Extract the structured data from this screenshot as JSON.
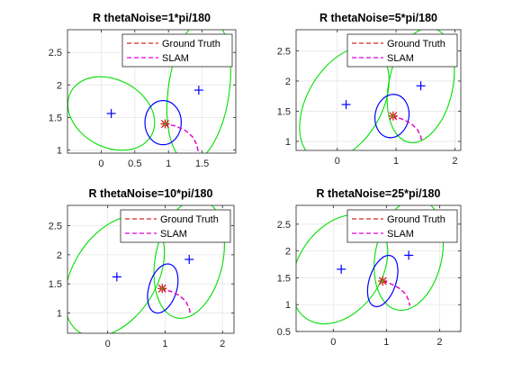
{
  "figure": {
    "background": "#ffffff",
    "colors": {
      "ground_truth": "#d62728",
      "slam": "#e000e0",
      "landmark_ellipse": "#00e000",
      "robot_ellipse": "#0000ff",
      "landmark_marker": "#00008b",
      "estimate_marker": "#d40000"
    }
  },
  "chart_data": [
    {
      "type": "line",
      "title": "R thetaNoise=1*pi/180",
      "xlim": [
        -0.5,
        2.0
      ],
      "ylim": [
        0.95,
        2.85
      ],
      "xticks": [
        0,
        0.5,
        1,
        1.5
      ],
      "xtick_labels": [
        "0",
        "0.5",
        "1",
        "1.5"
      ],
      "yticks": [
        1,
        1.5,
        2,
        2.5
      ],
      "ytick_labels": [
        "1",
        "1.5",
        "2",
        "2.5"
      ],
      "legend": {
        "placement": "top-right",
        "entries": [
          "Ground Truth",
          "SLAM"
        ]
      },
      "series": [
        {
          "name": "Ground Truth",
          "style": "dashed",
          "x": [
            0.93,
            1.1,
            1.25,
            1.36,
            1.42,
            1.44
          ],
          "y": [
            1.4,
            1.37,
            1.3,
            1.2,
            1.08,
            0.98
          ]
        },
        {
          "name": "SLAM",
          "style": "dashed",
          "x": [
            0.93,
            1.1,
            1.25,
            1.36,
            1.42,
            1.44
          ],
          "y": [
            1.4,
            1.37,
            1.3,
            1.2,
            1.08,
            0.98
          ]
        }
      ],
      "landmarks": [
        {
          "x": 0.15,
          "y": 1.56
        },
        {
          "x": 1.45,
          "y": 1.92
        }
      ],
      "estimate": {
        "x": 0.95,
        "y": 1.4
      },
      "landmark_ellipses": [
        {
          "cx": 0.15,
          "cy": 1.56,
          "rx": 0.68,
          "ry": 0.52,
          "rot_deg": -28
        },
        {
          "cx": 1.45,
          "cy": 1.92,
          "rx": 1.08,
          "ry": 0.47,
          "rot_deg": 82
        }
      ],
      "robot_ellipse": {
        "cx": 0.92,
        "cy": 1.42,
        "rx": 0.27,
        "ry": 0.34,
        "rot_deg": 0
      }
    },
    {
      "type": "line",
      "title": "R thetaNoise=5*pi/180",
      "xlim": [
        -0.7,
        2.1
      ],
      "ylim": [
        0.85,
        2.85
      ],
      "xticks": [
        0,
        1,
        2
      ],
      "xtick_labels": [
        "0",
        "1",
        "2"
      ],
      "yticks": [
        1,
        1.5,
        2,
        2.5
      ],
      "ytick_labels": [
        "1",
        "1.5",
        "2",
        "2.5"
      ],
      "legend": {
        "placement": "top-right",
        "entries": [
          "Ground Truth",
          "SLAM"
        ]
      },
      "series": [
        {
          "name": "Ground Truth",
          "style": "dashed",
          "x": [
            0.93,
            1.1,
            1.25,
            1.36,
            1.42,
            1.44
          ],
          "y": [
            1.42,
            1.37,
            1.3,
            1.2,
            1.08,
            0.98
          ]
        },
        {
          "name": "SLAM",
          "style": "dashed",
          "x": [
            0.93,
            1.1,
            1.25,
            1.36,
            1.42,
            1.44
          ],
          "y": [
            1.42,
            1.37,
            1.3,
            1.2,
            1.08,
            0.98
          ]
        }
      ],
      "landmarks": [
        {
          "x": 0.15,
          "y": 1.61
        },
        {
          "x": 1.42,
          "y": 1.92
        }
      ],
      "estimate": {
        "x": 0.95,
        "y": 1.42
      },
      "landmark_ellipses": [
        {
          "cx": 0.12,
          "cy": 1.62,
          "rx": 1.05,
          "ry": 0.62,
          "rot_deg": 60
        },
        {
          "cx": 1.42,
          "cy": 1.93,
          "rx": 0.99,
          "ry": 0.53,
          "rot_deg": 78
        }
      ],
      "robot_ellipse": {
        "cx": 0.93,
        "cy": 1.42,
        "rx": 0.37,
        "ry": 0.28,
        "rot_deg": 80
      }
    },
    {
      "type": "line",
      "title": "R thetaNoise=10*pi/180",
      "xlim": [
        -0.7,
        2.2
      ],
      "ylim": [
        0.65,
        2.85
      ],
      "xticks": [
        0,
        1,
        2
      ],
      "xtick_labels": [
        "0",
        "1",
        "2"
      ],
      "yticks": [
        1,
        1.5,
        2,
        2.5
      ],
      "ytick_labels": [
        "1",
        "1.5",
        "2",
        "2.5"
      ],
      "legend": {
        "placement": "top-right",
        "entries": [
          "Ground Truth",
          "SLAM"
        ]
      },
      "series": [
        {
          "name": "Ground Truth",
          "style": "dashed",
          "x": [
            0.93,
            1.1,
            1.25,
            1.36,
            1.42,
            1.44
          ],
          "y": [
            1.42,
            1.37,
            1.3,
            1.2,
            1.08,
            0.98
          ]
        },
        {
          "name": "SLAM",
          "style": "dashed",
          "x": [
            0.93,
            1.1,
            1.25,
            1.36,
            1.42,
            1.44
          ],
          "y": [
            1.42,
            1.37,
            1.3,
            1.2,
            1.08,
            0.98
          ]
        }
      ],
      "landmarks": [
        {
          "x": 0.16,
          "y": 1.62
        },
        {
          "x": 1.42,
          "y": 1.92
        }
      ],
      "estimate": {
        "x": 0.95,
        "y": 1.42
      },
      "landmark_ellipses": [
        {
          "cx": 0.12,
          "cy": 1.63,
          "rx": 1.15,
          "ry": 0.72,
          "rot_deg": 58
        },
        {
          "cx": 1.42,
          "cy": 1.93,
          "rx": 1.05,
          "ry": 0.58,
          "rot_deg": 78
        }
      ],
      "robot_ellipse": {
        "cx": 0.96,
        "cy": 1.42,
        "rx": 0.44,
        "ry": 0.24,
        "rot_deg": 73
      }
    },
    {
      "type": "line",
      "title": "R thetaNoise=25*pi/180",
      "xlim": [
        -0.7,
        2.4
      ],
      "ylim": [
        0.5,
        2.85
      ],
      "xticks": [
        0,
        1,
        2
      ],
      "xtick_labels": [
        "0",
        "1",
        "2"
      ],
      "yticks": [
        0.5,
        1,
        1.5,
        2,
        2.5
      ],
      "ytick_labels": [
        "0.5",
        "1",
        "1.5",
        "2",
        "2.5"
      ],
      "legend": {
        "placement": "top-right",
        "entries": [
          "Ground Truth",
          "SLAM"
        ]
      },
      "series": [
        {
          "name": "Ground Truth",
          "style": "dashed",
          "x": [
            0.93,
            1.1,
            1.25,
            1.36,
            1.42,
            1.44
          ],
          "y": [
            1.44,
            1.38,
            1.3,
            1.2,
            1.08,
            0.98
          ]
        },
        {
          "name": "SLAM",
          "style": "dashed",
          "x": [
            0.93,
            1.1,
            1.25,
            1.36,
            1.42,
            1.44
          ],
          "y": [
            1.44,
            1.38,
            1.3,
            1.2,
            1.08,
            0.98
          ]
        }
      ],
      "landmarks": [
        {
          "x": 0.15,
          "y": 1.66
        },
        {
          "x": 1.42,
          "y": 1.92
        }
      ],
      "estimate": {
        "x": 0.93,
        "y": 1.44
      },
      "landmark_ellipses": [
        {
          "cx": 0.12,
          "cy": 1.66,
          "rx": 1.12,
          "ry": 0.78,
          "rot_deg": 56
        },
        {
          "cx": 1.42,
          "cy": 1.93,
          "rx": 1.06,
          "ry": 0.62,
          "rot_deg": 78
        }
      ],
      "robot_ellipse": {
        "cx": 0.93,
        "cy": 1.44,
        "rx": 0.5,
        "ry": 0.25,
        "rot_deg": 72
      }
    }
  ]
}
